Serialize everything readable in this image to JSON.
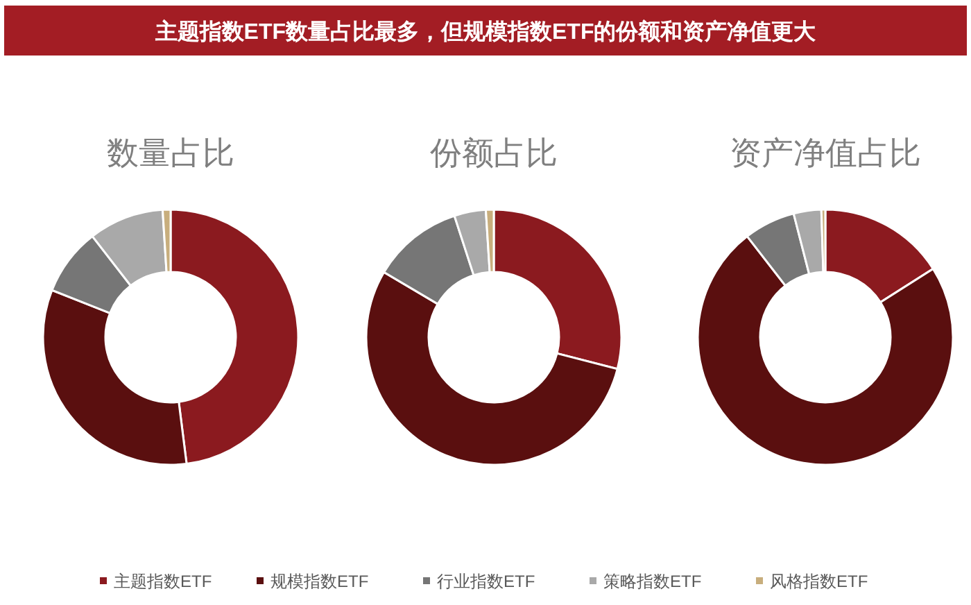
{
  "chart_data": [
    {
      "type": "donut",
      "title": "数量占比",
      "annotations": [
        "主题指数ETF数量占比最多，但规模指数ETF的份额和资产净值更大"
      ],
      "categories": [
        "主题指数ETF",
        "规模指数ETF",
        "行业指数ETF",
        "策略指数ETF",
        "风格指数ETF"
      ],
      "values": [
        48,
        33,
        8.5,
        9.5,
        1
      ],
      "colors": [
        "#8b1a1f",
        "#5a0f0f",
        "#767676",
        "#a9a9a9",
        "#c8ae7d"
      ],
      "legend": "bottom"
    },
    {
      "type": "donut",
      "title": "份额占比",
      "categories": [
        null,
        null,
        null,
        null,
        null
      ],
      "values": [
        29,
        54.5,
        11.5,
        4,
        1
      ],
      "colors": [
        "#8b1a1f",
        "#5a0f0f",
        "#767676",
        "#a9a9a9",
        "#c8ae7d"
      ]
    },
    {
      "type": "donut",
      "title": "资产净值占比",
      "categories": [
        null,
        null,
        null,
        null,
        null
      ],
      "values": [
        16,
        73.5,
        6.5,
        3.5,
        0.5
      ],
      "colors": [
        "#8b1a1f",
        "#5a0f0f",
        "#767676",
        "#a9a9a9",
        "#c8ae7d"
      ]
    }
  ]
}
